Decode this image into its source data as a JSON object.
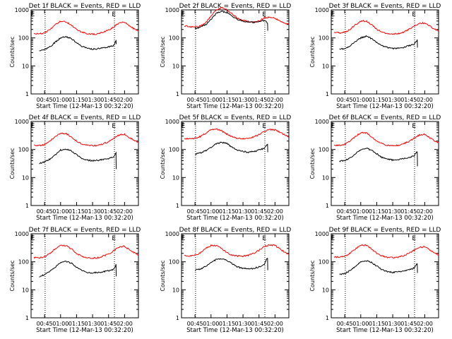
{
  "chart_data": {
    "type": "line",
    "shared": {
      "xlabel": "Start Time (12-Mar-13 00:32:20)",
      "ylabel": "Counts/sec",
      "x_ticks": [
        "00:45",
        "01:00",
        "01:15",
        "01:30",
        "01:45",
        "02:00"
      ],
      "x_tick_minutes": [
        45,
        60,
        75,
        90,
        105,
        120
      ],
      "xlim_minutes": [
        32.33,
        133
      ],
      "y_scale": "log",
      "ylim": [
        1,
        1000
      ],
      "y_ticks": [
        "1",
        "10",
        "100",
        "1000"
      ],
      "y_tick_values": [
        1,
        10,
        100,
        1000
      ],
      "vertical_markers_minutes": [
        45.5,
        110.5
      ],
      "marker_label": "E",
      "marker_label_minutes": [
        34,
        110
      ],
      "colors": {
        "events": "#000000",
        "lld": "#ff0000"
      }
    },
    "panels": [
      {
        "title": "Det 1f BLACK = Events, RED = LLD",
        "series": [
          {
            "color": "#ff0000",
            "x": [
              35,
              40,
              45,
              50,
              55,
              60,
              65,
              70,
              75,
              80,
              85,
              90,
              95,
              100,
              105,
              110,
              115,
              120,
              125,
              130,
              133
            ],
            "y": [
              140,
              140,
              150,
              200,
              290,
              390,
              380,
              290,
              200,
              160,
              140,
              135,
              140,
              160,
              190,
              250,
              340,
              360,
              260,
              200,
              175
            ]
          },
          {
            "color": "#000000",
            "x": [
              40,
              45,
              50,
              55,
              60,
              65,
              70,
              75,
              80,
              85,
              90,
              95,
              100,
              105,
              110,
              112,
              112.2
            ],
            "y": [
              34,
              38,
              48,
              70,
              100,
              110,
              95,
              68,
              50,
              42,
              40,
              41,
              44,
              48,
              55,
              80,
              60
            ]
          }
        ]
      },
      {
        "title": "Det 2f BLACK = Events, RED = LLD",
        "series": [
          {
            "color": "#ff0000",
            "x": [
              35,
              40,
              45,
              50,
              55,
              60,
              65,
              70,
              75,
              80,
              85,
              90,
              95,
              100,
              105,
              110,
              115,
              120,
              125,
              130,
              133
            ],
            "y": [
              270,
              250,
              240,
              260,
              350,
              600,
              1000,
              1200,
              1000,
              700,
              500,
              420,
              380,
              370,
              400,
              520,
              560,
              500,
              400,
              330,
              300
            ]
          },
          {
            "color": "#000000",
            "x": [
              45,
              50,
              55,
              60,
              65,
              70,
              75,
              80,
              85,
              90,
              95,
              100,
              105,
              110,
              113,
              113.2
            ],
            "y": [
              220,
              240,
              300,
              450,
              750,
              900,
              800,
              600,
              450,
              400,
              370,
              360,
              380,
              420,
              350,
              180
            ]
          }
        ]
      },
      {
        "title": "Det 3f BLACK = Events, RED = LLD",
        "series": [
          {
            "color": "#ff0000",
            "x": [
              35,
              40,
              45,
              50,
              55,
              60,
              65,
              70,
              75,
              80,
              85,
              90,
              95,
              100,
              105,
              110,
              115,
              120,
              125,
              130,
              133
            ],
            "y": [
              160,
              150,
              160,
              200,
              290,
              400,
              400,
              300,
              200,
              160,
              140,
              140,
              140,
              160,
              200,
              260,
              330,
              340,
              260,
              200,
              175
            ]
          },
          {
            "color": "#000000",
            "x": [
              40,
              45,
              50,
              55,
              60,
              65,
              70,
              75,
              80,
              85,
              90,
              95,
              100,
              105,
              110,
              113,
              113.2
            ],
            "y": [
              40,
              42,
              52,
              75,
              100,
              115,
              95,
              70,
              52,
              45,
              42,
              43,
              46,
              52,
              60,
              85,
              45
            ]
          }
        ]
      },
      {
        "title": "Det 4f BLACK = Events, RED = LLD",
        "series": [
          {
            "color": "#ff0000",
            "x": [
              35,
              40,
              45,
              50,
              55,
              60,
              65,
              70,
              75,
              80,
              85,
              90,
              95,
              100,
              105,
              110,
              115,
              120,
              125,
              130,
              133
            ],
            "y": [
              140,
              140,
              150,
              200,
              290,
              380,
              370,
              280,
              200,
              160,
              140,
              135,
              140,
              160,
              190,
              250,
              330,
              350,
              260,
              200,
              175
            ]
          },
          {
            "color": "#000000",
            "x": [
              40,
              45,
              50,
              55,
              60,
              65,
              70,
              75,
              80,
              85,
              90,
              95,
              100,
              105,
              110,
              112,
              112.2
            ],
            "y": [
              32,
              36,
              45,
              65,
              95,
              105,
              90,
              65,
              48,
              42,
              40,
              41,
              44,
              48,
              55,
              80,
              20
            ]
          }
        ]
      },
      {
        "title": "Det 5f BLACK = Events, RED = LLD",
        "series": [
          {
            "color": "#ff0000",
            "x": [
              35,
              40,
              45,
              50,
              55,
              60,
              65,
              70,
              75,
              80,
              85,
              90,
              95,
              100,
              105,
              110,
              115,
              120,
              125,
              130,
              133
            ],
            "y": [
              250,
              240,
              250,
              290,
              380,
              500,
              550,
              460,
              350,
              280,
              250,
              240,
              250,
              280,
              340,
              440,
              520,
              500,
              400,
              320,
              280
            ]
          },
          {
            "color": "#000000",
            "x": [
              45,
              50,
              55,
              60,
              65,
              70,
              75,
              80,
              85,
              90,
              95,
              100,
              105,
              110,
              113,
              113.2
            ],
            "y": [
              70,
              75,
              90,
              120,
              160,
              180,
              160,
              120,
              95,
              85,
              80,
              85,
              95,
              110,
              150,
              80
            ]
          }
        ]
      },
      {
        "title": "Det 6f BLACK = Events, RED = LLD",
        "series": [
          {
            "color": "#ff0000",
            "x": [
              35,
              40,
              45,
              50,
              55,
              60,
              65,
              70,
              75,
              80,
              85,
              90,
              95,
              100,
              105,
              110,
              115,
              120,
              125,
              130,
              133
            ],
            "y": [
              140,
              140,
              150,
              200,
              290,
              400,
              390,
              290,
              200,
              160,
              140,
              135,
              140,
              160,
              190,
              250,
              330,
              350,
              260,
              200,
              175
            ]
          },
          {
            "color": "#000000",
            "x": [
              40,
              45,
              50,
              55,
              60,
              65,
              70,
              75,
              80,
              85,
              90,
              95,
              100,
              105,
              110,
              113,
              113.2
            ],
            "y": [
              38,
              40,
              50,
              72,
              100,
              112,
              95,
              70,
              52,
              45,
              42,
              43,
              46,
              52,
              60,
              85,
              25
            ]
          }
        ]
      },
      {
        "title": "Det 7f BLACK = Events, RED = LLD",
        "series": [
          {
            "color": "#ff0000",
            "x": [
              35,
              40,
              45,
              50,
              55,
              60,
              65,
              70,
              75,
              80,
              85,
              90,
              95,
              100,
              105,
              110,
              115,
              120,
              125,
              130,
              133
            ],
            "y": [
              140,
              140,
              150,
              200,
              290,
              390,
              380,
              290,
              200,
              160,
              140,
              135,
              140,
              160,
              190,
              250,
              340,
              360,
              260,
              200,
              175
            ]
          },
          {
            "color": "#000000",
            "x": [
              40,
              45,
              50,
              55,
              60,
              65,
              70,
              75,
              80,
              85,
              90,
              95,
              100,
              105,
              110,
              112,
              112.2
            ],
            "y": [
              30,
              34,
              45,
              65,
              95,
              105,
              90,
              65,
              48,
              42,
              40,
              41,
              44,
              48,
              55,
              80,
              30
            ]
          }
        ]
      },
      {
        "title": "Det 8f BLACK = Events, RED = LLD",
        "series": [
          {
            "color": "#ff0000",
            "x": [
              35,
              40,
              45,
              50,
              55,
              60,
              65,
              70,
              75,
              80,
              85,
              90,
              95,
              100,
              105,
              110,
              115,
              120,
              125,
              130,
              133
            ],
            "y": [
              170,
              160,
              170,
              210,
              300,
              380,
              380,
              290,
              210,
              170,
              160,
              160,
              170,
              200,
              260,
              350,
              400,
              380,
              280,
              210,
              180
            ]
          },
          {
            "color": "#000000",
            "x": [
              45,
              50,
              55,
              60,
              65,
              70,
              75,
              80,
              85,
              90,
              95,
              100,
              105,
              110,
              113,
              113.2
            ],
            "y": [
              50,
              55,
              70,
              95,
              120,
              130,
              110,
              85,
              65,
              58,
              55,
              58,
              65,
              80,
              140,
              50
            ]
          }
        ]
      },
      {
        "title": "Det 9f BLACK = Events, RED = LLD",
        "series": [
          {
            "color": "#ff0000",
            "x": [
              35,
              40,
              45,
              50,
              55,
              60,
              65,
              70,
              75,
              80,
              85,
              90,
              95,
              100,
              105,
              110,
              115,
              120,
              125,
              130,
              133
            ],
            "y": [
              150,
              145,
              155,
              200,
              290,
              390,
              390,
              290,
              200,
              160,
              145,
              140,
              145,
              165,
              200,
              260,
              330,
              340,
              260,
              200,
              175
            ]
          },
          {
            "color": "#000000",
            "x": [
              40,
              45,
              50,
              55,
              60,
              65,
              70,
              75,
              80,
              85,
              90,
              95,
              100,
              105,
              110,
              113,
              113.2
            ],
            "y": [
              35,
              38,
              48,
              70,
              98,
              110,
              95,
              70,
              52,
              45,
              42,
              43,
              46,
              52,
              60,
              85,
              40
            ]
          }
        ]
      }
    ]
  }
}
